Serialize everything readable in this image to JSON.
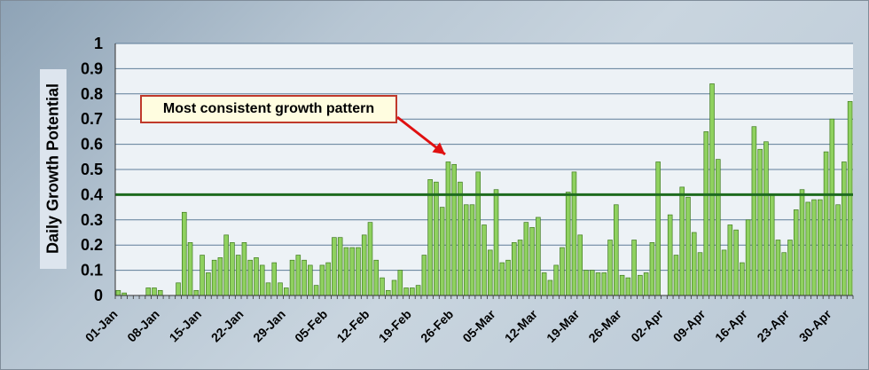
{
  "chart_data": {
    "type": "bar",
    "ylabel": "Daily Growth Potential",
    "ylim": [
      0,
      1
    ],
    "yticks": [
      "0",
      "0.1",
      "0.2",
      "0.3",
      "0.4",
      "0.5",
      "0.6",
      "0.7",
      "0.8",
      "0.9",
      "1"
    ],
    "xtick_labels": [
      "01-Jan",
      "08-Jan",
      "15-Jan",
      "22-Jan",
      "29-Jan",
      "05-Feb",
      "12-Feb",
      "19-Feb",
      "26-Feb",
      "05-Mar",
      "12-Mar",
      "19-Mar",
      "26-Mar",
      "02-Apr",
      "09-Apr",
      "16-Apr",
      "23-Apr",
      "30-Apr"
    ],
    "start_date": "01-Jan",
    "end_date": "30-Apr",
    "values": [
      0.02,
      0.01,
      0,
      0,
      0,
      0.03,
      0.03,
      0.02,
      0,
      0,
      0.05,
      0.33,
      0.21,
      0.02,
      0.16,
      0.09,
      0.14,
      0.15,
      0.24,
      0.21,
      0.16,
      0.21,
      0.14,
      0.15,
      0.12,
      0.05,
      0.13,
      0.05,
      0.03,
      0.14,
      0.16,
      0.14,
      0.12,
      0.04,
      0.12,
      0.13,
      0.23,
      0.23,
      0.19,
      0.19,
      0.19,
      0.24,
      0.29,
      0.14,
      0.07,
      0.02,
      0.06,
      0.1,
      0.03,
      0.03,
      0.04,
      0.16,
      0.46,
      0.45,
      0.35,
      0.53,
      0.52,
      0.45,
      0.36,
      0.36,
      0.49,
      0.28,
      0.18,
      0.42,
      0.13,
      0.14,
      0.21,
      0.22,
      0.29,
      0.27,
      0.31,
      0.09,
      0.06,
      0.12,
      0.19,
      0.41,
      0.49,
      0.24,
      0.1,
      0.1,
      0.09,
      0.09,
      0.22,
      0.36,
      0.08,
      0.07,
      0.22,
      0.08,
      0.09,
      0.21,
      0.53,
      0,
      0.32,
      0.16,
      0.43,
      0.39,
      0.25,
      0.17,
      0.65,
      0.84,
      0.54,
      0.18,
      0.28,
      0.26,
      0.13,
      0.3,
      0.67,
      0.58,
      0.61,
      0.4,
      0.22,
      0.17,
      0.22,
      0.34,
      0.42,
      0.37,
      0.38,
      0.38,
      0.57,
      0.7,
      0.36,
      0.53,
      0.77
    ],
    "reference_line": 0.4,
    "grid": true,
    "colors": {
      "bar_fill": "#8fd15f",
      "bar_stroke": "#3f7a1f",
      "reference_line": "#1e6b1e",
      "plot_bg": "#edf2f6",
      "annotation_arrow": "#e01010"
    },
    "annotation": {
      "text": "Most consistent growth pattern"
    }
  }
}
